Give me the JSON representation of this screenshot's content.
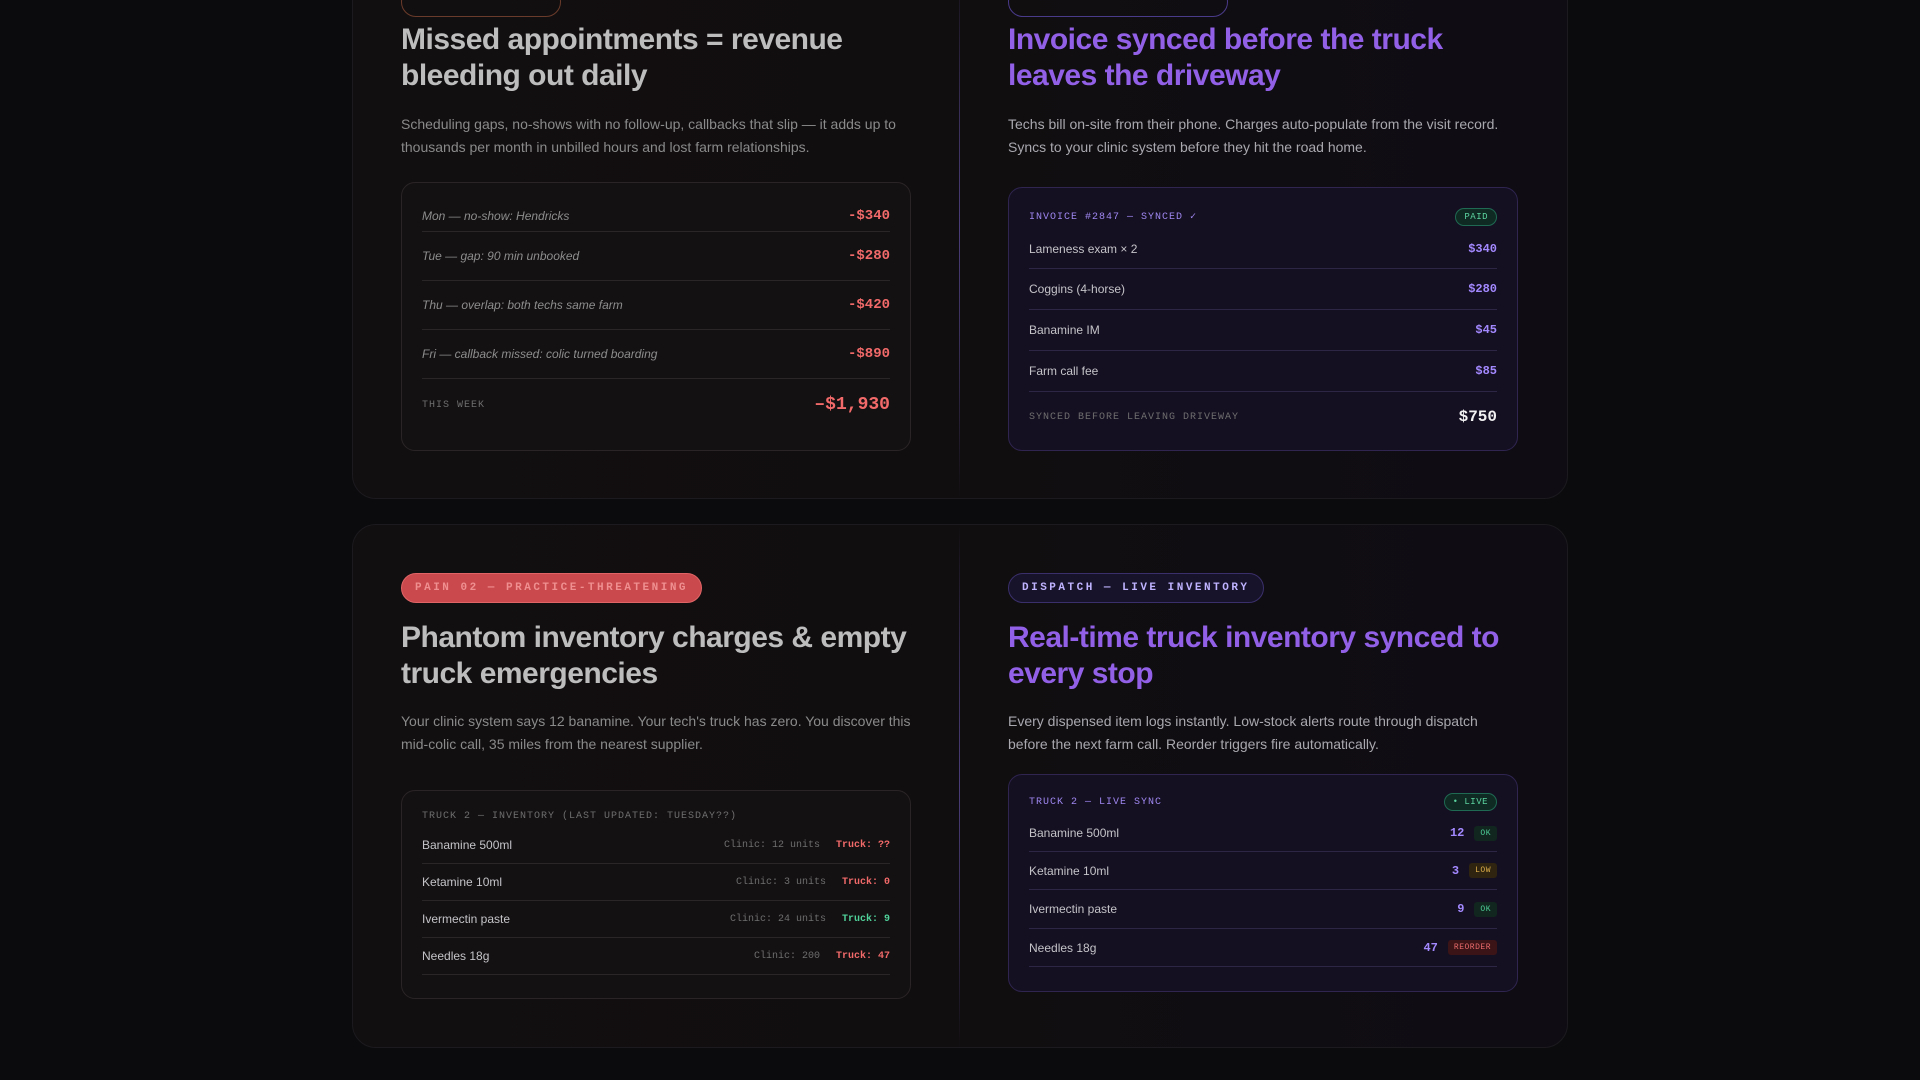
{
  "top": {
    "pain": {
      "title": "Missed appointments = revenue bleeding out daily",
      "description": "Scheduling gaps, no-shows with no follow-up, callbacks that slip — it adds up to thousands per month in unbilled hours and lost farm relationships.",
      "rows": [
        {
          "label": "Mon — no-show: Hendricks",
          "value": "-$340"
        },
        {
          "label": "Tue — gap: 90 min unbooked",
          "value": "-$280"
        },
        {
          "label": "Thu — overlap: both techs same farm",
          "value": "-$420"
        },
        {
          "label": "Fri — callback missed: colic turned boarding",
          "value": "-$890"
        }
      ],
      "total_label": "THIS WEEK",
      "total_value": "–$1,930"
    },
    "solve": {
      "title": "Invoice synced before the truck leaves the driveway",
      "description": "Techs bill on-site from their phone. Charges auto-populate from the visit record. Syncs to your clinic system before they hit the road home.",
      "header": "INVOICE #2847 — SYNCED ✓",
      "badge": "PAID",
      "rows": [
        {
          "label": "Lameness exam × 2",
          "value": "$340"
        },
        {
          "label": "Coggins (4-horse)",
          "value": "$280"
        },
        {
          "label": "Banamine IM",
          "value": "$45"
        },
        {
          "label": "Farm call fee",
          "value": "$85"
        }
      ],
      "total_label": "SYNCED BEFORE LEAVING DRIVEWAY",
      "total_value": "$750"
    }
  },
  "bottom": {
    "pain": {
      "pill": "PAIN 02 — PRACTICE-THREATENING",
      "title": "Phantom inventory charges & empty truck emergencies",
      "description": "Your clinic system says 12 banamine. Your tech's truck has zero. You discover this mid-colic call, 35 miles from the nearest supplier.",
      "header": "TRUCK 2 — INVENTORY (LAST UPDATED: TUESDAY??)",
      "rows": [
        {
          "label": "Banamine 500ml",
          "clinic": "Clinic: 12 units",
          "truck": "Truck: ??"
        },
        {
          "label": "Ketamine 10ml",
          "clinic": "Clinic: 3 units",
          "truck": "Truck: 0"
        },
        {
          "label": "Ivermectin paste",
          "clinic": "Clinic: 24 units",
          "truck": "Truck: 9"
        },
        {
          "label": "Needles 18g",
          "clinic": "Clinic: 200",
          "truck": "Truck: 47"
        }
      ]
    },
    "solve": {
      "pill": "DISPATCH — LIVE INVENTORY",
      "title": "Real-time truck inventory synced to every stop",
      "description": "Every dispensed item logs instantly. Low-stock alerts route through dispatch before the next farm call. Reorder triggers fire automatically.",
      "header": "TRUCK 2 — LIVE SYNC",
      "badge": "• LIVE",
      "rows": [
        {
          "label": "Banamine 500ml",
          "qty": "12",
          "status": "OK"
        },
        {
          "label": "Ketamine 10ml",
          "qty": "3",
          "status": "LOW"
        },
        {
          "label": "Ivermectin paste",
          "qty": "9",
          "status": "OK"
        },
        {
          "label": "Needles 18g",
          "qty": "47",
          "status": "REORDER"
        }
      ]
    }
  },
  "colors": {
    "loss_red": "#f26a6a",
    "accent_purple": "#9160e6",
    "ok_green": "#4fd19a",
    "low_amber": "#e0b04a"
  }
}
